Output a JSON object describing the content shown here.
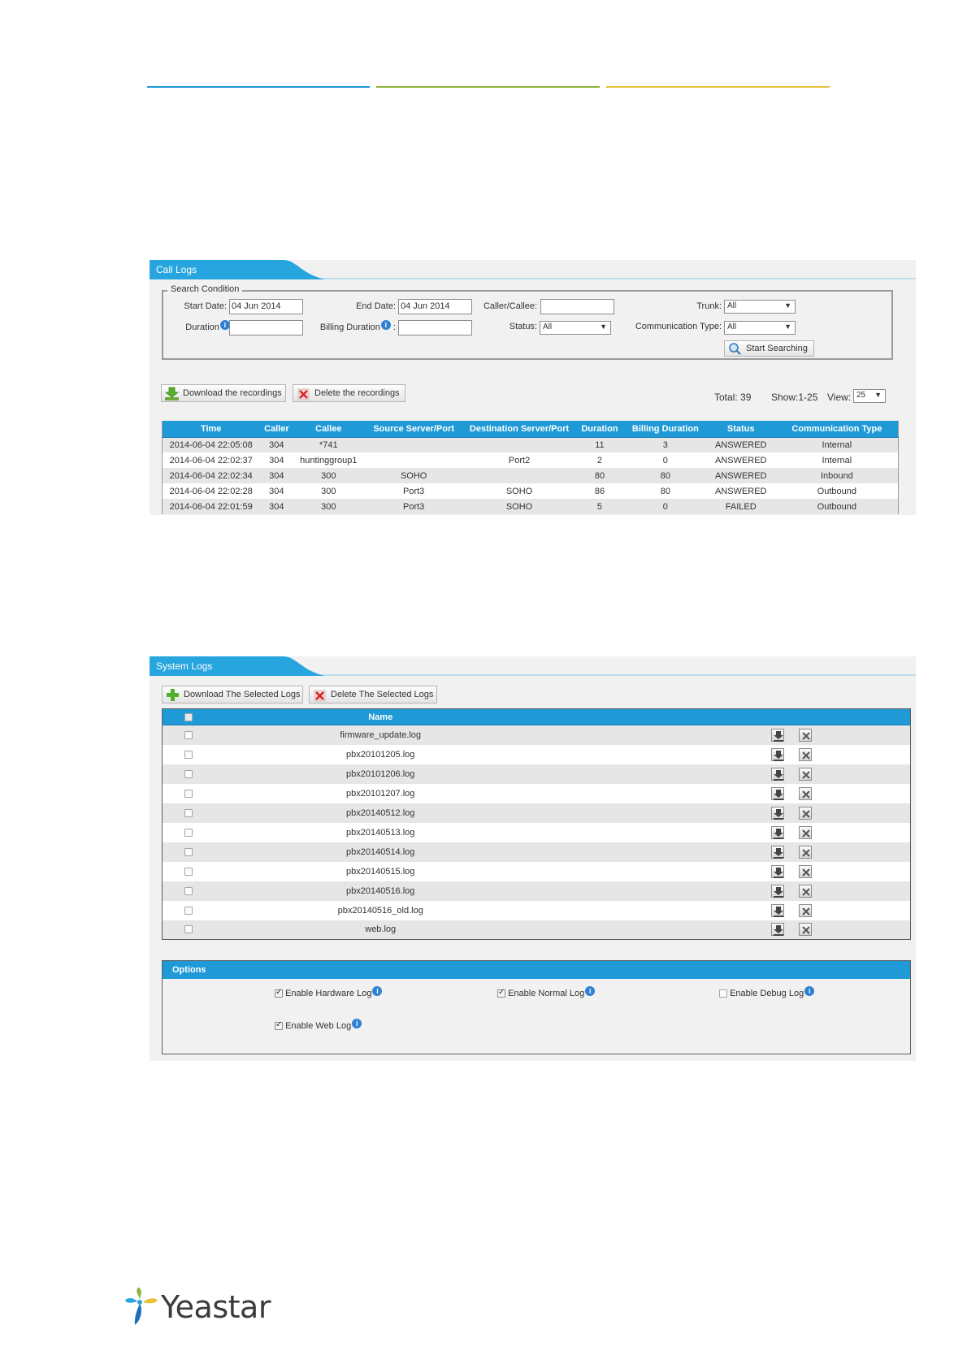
{
  "call_logs": {
    "title": "Call Logs",
    "search_condition": "Search Condition",
    "start_date_label": "Start Date:",
    "start_date_value": "04 Jun 2014",
    "end_date_label": "End Date:",
    "end_date_value": "04 Jun 2014",
    "caller_callee_label": "Caller/Callee:",
    "caller_callee_value": "",
    "trunk_label": "Trunk:",
    "trunk_value": "All",
    "duration_label": "Duration",
    "duration_value": "",
    "billing_duration_label": "Billing Duration",
    "billing_duration_value": "",
    "status_label": "Status:",
    "status_value": "All",
    "communication_type_label": "Communication Type:",
    "communication_type_value": "All",
    "start_searching": "Start Searching",
    "download_recordings": "Download the recordings",
    "delete_recordings": "Delete the recordings",
    "total": "Total: 39",
    "show": "Show:1-25",
    "view_label": "View:",
    "view_value": "25",
    "columns": [
      "Time",
      "Caller",
      "Callee",
      "Source Server/Port",
      "Destination Server/Port",
      "Duration",
      "Billing Duration",
      "Status",
      "Communication Type"
    ],
    "rows": [
      [
        "2014-06-04 22:05:08",
        "304",
        "*741",
        "",
        "",
        "11",
        "3",
        "ANSWERED",
        "Internal"
      ],
      [
        "2014-06-04 22:02:37",
        "304",
        "huntinggroup1",
        "",
        "Port2",
        "2",
        "0",
        "ANSWERED",
        "Internal"
      ],
      [
        "2014-06-04 22:02:34",
        "304",
        "300",
        "SOHO",
        "",
        "80",
        "80",
        "ANSWERED",
        "Inbound"
      ],
      [
        "2014-06-04 22:02:28",
        "304",
        "300",
        "Port3",
        "SOHO",
        "86",
        "80",
        "ANSWERED",
        "Outbound"
      ],
      [
        "2014-06-04 22:01:59",
        "304",
        "300",
        "Port3",
        "SOHO",
        "5",
        "0",
        "FAILED",
        "Outbound"
      ]
    ]
  },
  "system_logs": {
    "title": "System Logs",
    "download_selected": "Download The Selected Logs",
    "delete_selected": "Delete The Selected Logs",
    "name_header": "Name",
    "files": [
      "firmware_update.log",
      "pbx20101205.log",
      "pbx20101206.log",
      "pbx20101207.log",
      "pbx20140512.log",
      "pbx20140513.log",
      "pbx20140514.log",
      "pbx20140515.log",
      "pbx20140516.log",
      "pbx20140516_old.log",
      "web.log"
    ],
    "options_title": "Options",
    "options": [
      {
        "label": "Enable Hardware Log",
        "checked": true
      },
      {
        "label": "Enable Normal Log",
        "checked": true
      },
      {
        "label": "Enable Debug Log",
        "checked": false
      },
      {
        "label": "Enable Web Log",
        "checked": true
      }
    ]
  },
  "footer": {
    "logo_text": "Yeastar"
  },
  "colors": {
    "header_blue": "#1f9ad6",
    "bar_blue": "#1f9ad6",
    "bar_green": "#8ab53c",
    "bar_yellow": "#e8c23a"
  }
}
